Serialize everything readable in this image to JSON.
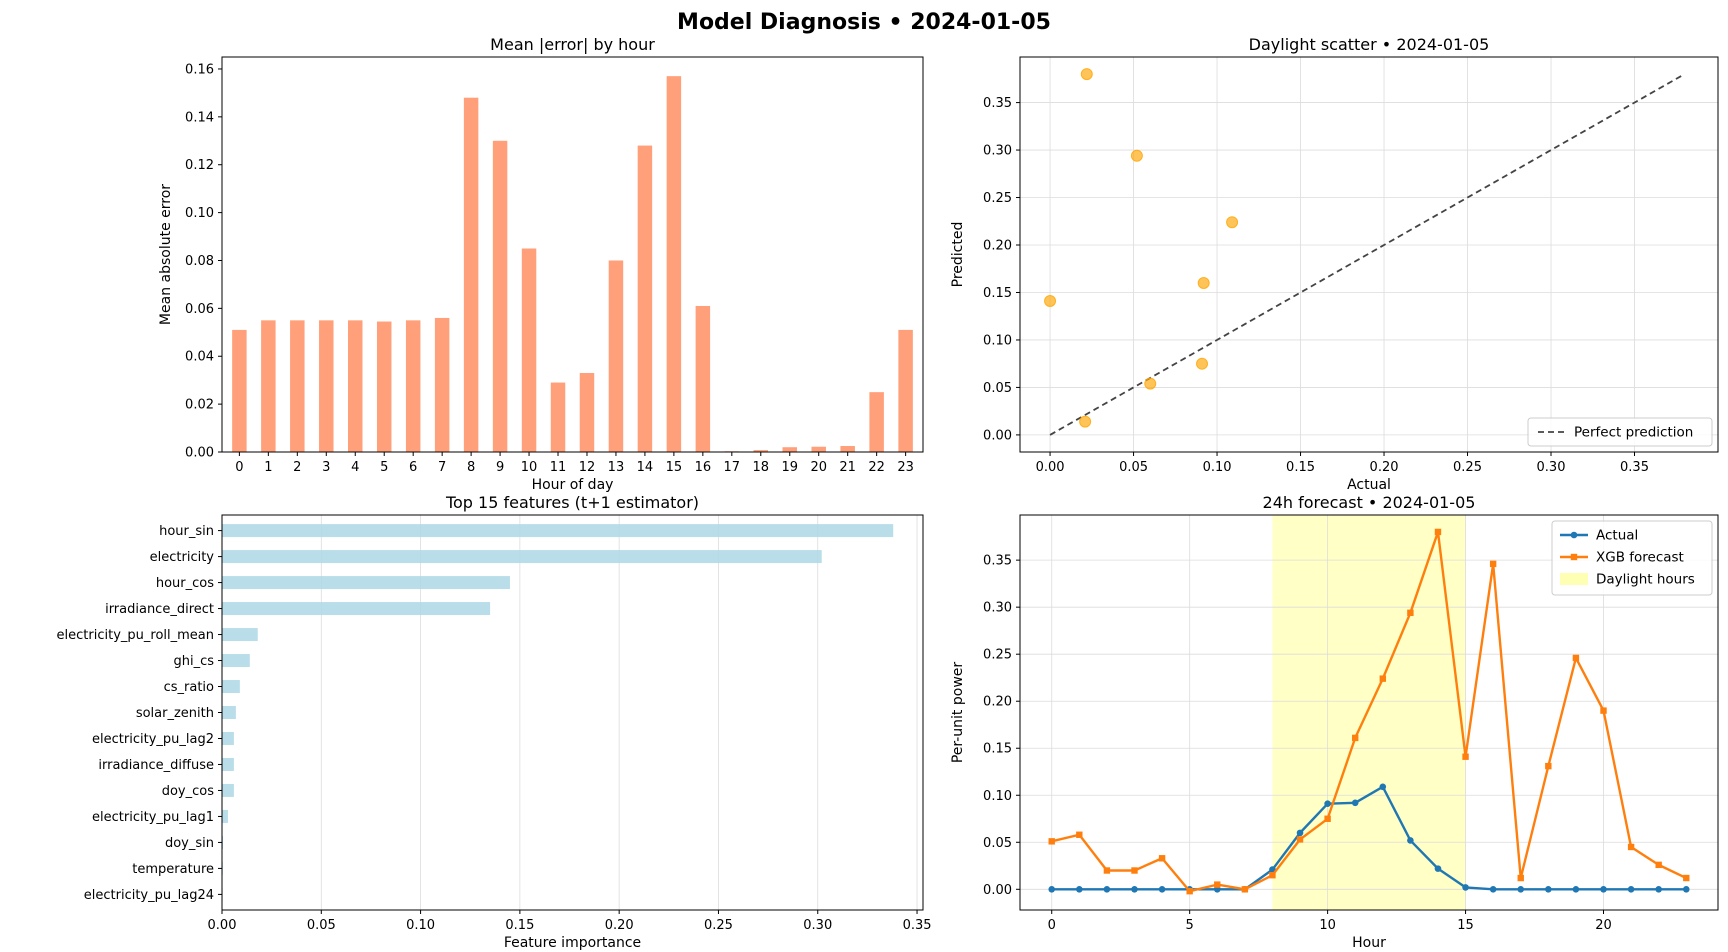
{
  "figure": {
    "title": "Model Diagnosis • 2024-01-05"
  },
  "colors": {
    "mae_bar": "#ffa07a",
    "importance_bar": "#add8e6",
    "scatter_point": "#ffa500",
    "actual_line": "#1f77b4",
    "forecast_line": "#ff7f0e",
    "daylight_span": "#ffffb3",
    "reference_line": "#444444"
  },
  "chart_data": [
    {
      "id": "mae",
      "type": "bar",
      "title": "Mean |error| by hour",
      "xlabel": "Hour of day",
      "ylabel": "Mean absolute error",
      "ylim": [
        0,
        0.165
      ],
      "yticks": [
        0,
        0.02,
        0.04,
        0.06,
        0.08,
        0.1,
        0.12,
        0.14,
        0.16
      ],
      "ytick_labels": [
        "0.00",
        "0.02",
        "0.04",
        "0.06",
        "0.08",
        "0.10",
        "0.12",
        "0.14",
        "0.16"
      ],
      "categories": [
        "0",
        "1",
        "2",
        "3",
        "4",
        "5",
        "6",
        "7",
        "8",
        "9",
        "10",
        "11",
        "12",
        "13",
        "14",
        "15",
        "16",
        "17",
        "18",
        "19",
        "20",
        "21",
        "22",
        "23"
      ],
      "values": [
        0.051,
        0.055,
        0.055,
        0.055,
        0.055,
        0.0545,
        0.055,
        0.056,
        0.148,
        0.13,
        0.085,
        0.029,
        0.033,
        0.08,
        0.128,
        0.157,
        0.061,
        0.0003,
        0.0008,
        0.002,
        0.0022,
        0.0025,
        0.025,
        0.051
      ],
      "grid": false
    },
    {
      "id": "scatter",
      "type": "scatter",
      "title": "Daylight scatter • 2024-01-05",
      "xlabel": "Actual",
      "ylabel": "Predicted",
      "xlim": [
        -0.018,
        0.4
      ],
      "ylim": [
        -0.018,
        0.398
      ],
      "xticks": [
        0,
        0.05,
        0.1,
        0.15,
        0.2,
        0.25,
        0.3,
        0.35
      ],
      "xtick_labels": [
        "0.00",
        "0.05",
        "0.10",
        "0.15",
        "0.20",
        "0.25",
        "0.30",
        "0.35"
      ],
      "yticks": [
        0,
        0.05,
        0.1,
        0.15,
        0.2,
        0.25,
        0.3,
        0.35
      ],
      "ytick_labels": [
        "0.00",
        "0.05",
        "0.10",
        "0.15",
        "0.20",
        "0.25",
        "0.30",
        "0.35"
      ],
      "points": [
        {
          "x": 0.0,
          "y": 0.141
        },
        {
          "x": 0.021,
          "y": 0.014
        },
        {
          "x": 0.022,
          "y": 0.38
        },
        {
          "x": 0.052,
          "y": 0.294
        },
        {
          "x": 0.06,
          "y": 0.054
        },
        {
          "x": 0.091,
          "y": 0.075
        },
        {
          "x": 0.092,
          "y": 0.16
        },
        {
          "x": 0.109,
          "y": 0.224
        }
      ],
      "reference_line": {
        "from": [
          0,
          0
        ],
        "to": [
          0.38,
          0.38
        ],
        "name": "Perfect prediction"
      },
      "legend": "lower-right",
      "grid": true
    },
    {
      "id": "importance",
      "type": "bar",
      "orientation": "horizontal",
      "title": "Top 15 features (t+1 estimator)",
      "xlabel": "Feature importance",
      "ylabel": "",
      "xlim": [
        0,
        0.353
      ],
      "xticks": [
        0,
        0.05,
        0.1,
        0.15,
        0.2,
        0.25,
        0.3,
        0.35
      ],
      "xtick_labels": [
        "0.00",
        "0.05",
        "0.10",
        "0.15",
        "0.20",
        "0.25",
        "0.30",
        "0.35"
      ],
      "categories": [
        "hour_sin",
        "electricity",
        "hour_cos",
        "irradiance_direct",
        "electricity_pu_roll_mean",
        "ghi_cs",
        "cs_ratio",
        "solar_zenith",
        "electricity_pu_lag2",
        "irradiance_diffuse",
        "doy_cos",
        "electricity_pu_lag1",
        "doy_sin",
        "temperature",
        "electricity_pu_lag24"
      ],
      "values": [
        0.338,
        0.302,
        0.145,
        0.135,
        0.018,
        0.014,
        0.009,
        0.007,
        0.006,
        0.006,
        0.006,
        0.003,
        0.0005,
        0.0004,
        0.0003
      ],
      "grid": true
    },
    {
      "id": "forecast",
      "type": "line",
      "title": "24h forecast • 2024-01-05",
      "xlabel": "Hour",
      "ylabel": "Per-unit power",
      "xlim": [
        -1.15,
        24.15
      ],
      "ylim": [
        -0.022,
        0.398
      ],
      "xticks": [
        0,
        5,
        10,
        15,
        20
      ],
      "xtick_labels": [
        "0",
        "5",
        "10",
        "15",
        "20"
      ],
      "yticks": [
        0,
        0.05,
        0.1,
        0.15,
        0.2,
        0.25,
        0.3,
        0.35
      ],
      "ytick_labels": [
        "0.00",
        "0.05",
        "0.10",
        "0.15",
        "0.20",
        "0.25",
        "0.30",
        "0.35"
      ],
      "x": [
        0,
        1,
        2,
        3,
        4,
        5,
        6,
        7,
        8,
        9,
        10,
        11,
        12,
        13,
        14,
        15,
        16,
        17,
        18,
        19,
        20,
        21,
        22,
        23
      ],
      "series": [
        {
          "name": "Actual",
          "marker": "circle",
          "values": [
            0,
            0,
            0,
            0,
            0,
            0,
            0,
            0,
            0.021,
            0.06,
            0.091,
            0.092,
            0.109,
            0.052,
            0.022,
            0.002,
            0,
            0,
            0,
            0,
            0,
            0,
            0,
            0
          ]
        },
        {
          "name": "XGB forecast",
          "marker": "square",
          "values": [
            0.051,
            0.058,
            0.02,
            0.02,
            0.033,
            -0.002,
            0.005,
            0.0,
            0.015,
            0.053,
            0.075,
            0.161,
            0.224,
            0.294,
            0.38,
            0.141,
            0.346,
            0.012,
            0.131,
            0.246,
            0.19,
            0.045,
            0.026,
            0.012
          ]
        }
      ],
      "span": {
        "x0": 8,
        "x1": 15,
        "name": "Daylight hours"
      },
      "legend": "upper-right",
      "grid": true
    }
  ]
}
